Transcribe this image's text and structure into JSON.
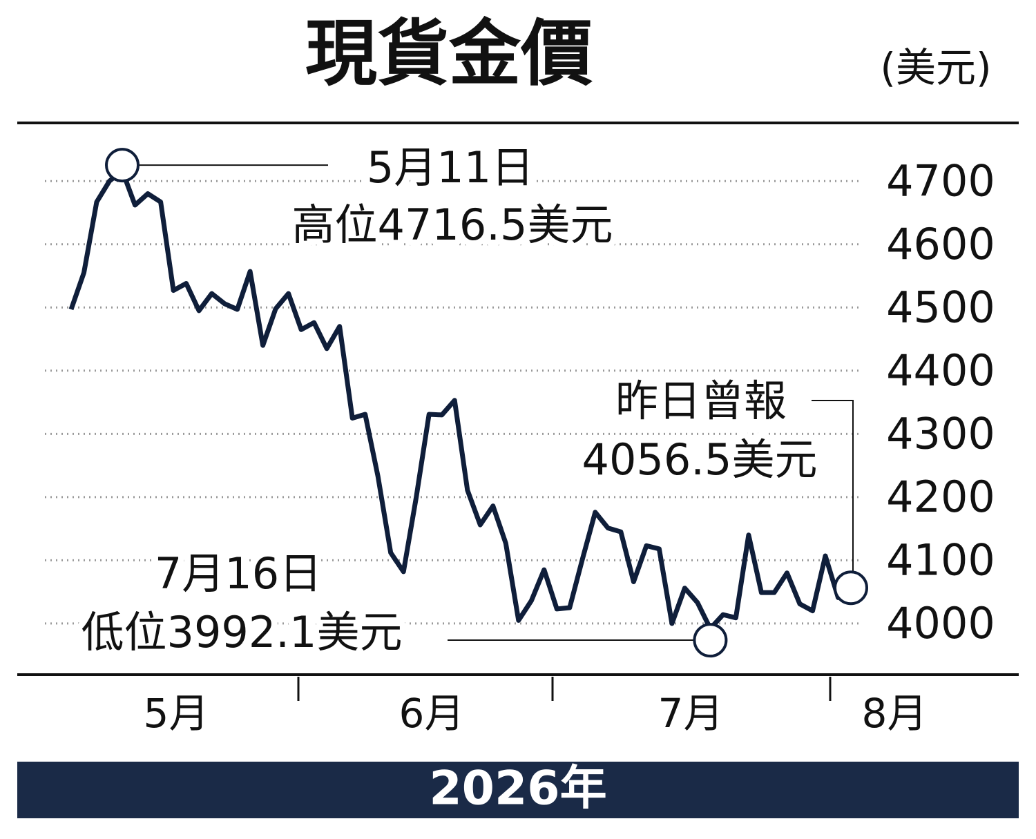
{
  "chart_data": {
    "type": "line",
    "title": "現貨金價",
    "y_unit": "(美元)",
    "year_label": "2026年",
    "month_labels": [
      "5月",
      "6月",
      "7月",
      "8月"
    ],
    "color": "#0f1e3a",
    "grid": true,
    "ylim": [
      3930,
      4780
    ],
    "yticks": [
      4000,
      4100,
      4200,
      4300,
      4400,
      4500,
      4600,
      4700
    ],
    "values": [
      4497,
      4555,
      4667,
      4700,
      4716.5,
      4662,
      4680,
      4667,
      4527,
      4538,
      4495,
      4522,
      4506,
      4497,
      4557,
      4440,
      4498,
      4522,
      4465,
      4476,
      4435,
      4470,
      4325,
      4331,
      4233,
      4112,
      4082,
      4200,
      4331,
      4330,
      4353,
      4211,
      4156,
      4186,
      4127,
      4005,
      4036,
      4085,
      4023,
      4025,
      4102,
      4176,
      4151,
      4145,
      4066,
      4123,
      4118,
      4000,
      4056,
      4033,
      3992.1,
      4014,
      4009,
      4140,
      4049,
      4049,
      4080,
      4031,
      4020,
      4107,
      4041,
      4056.5
    ],
    "annotations": {
      "high": [
        "5月11日",
        "高位4716.5美元"
      ],
      "low": [
        "7月16日",
        "低位3992.1美元"
      ],
      "last": [
        "昨日曾報",
        "4056.5美元"
      ]
    }
  }
}
